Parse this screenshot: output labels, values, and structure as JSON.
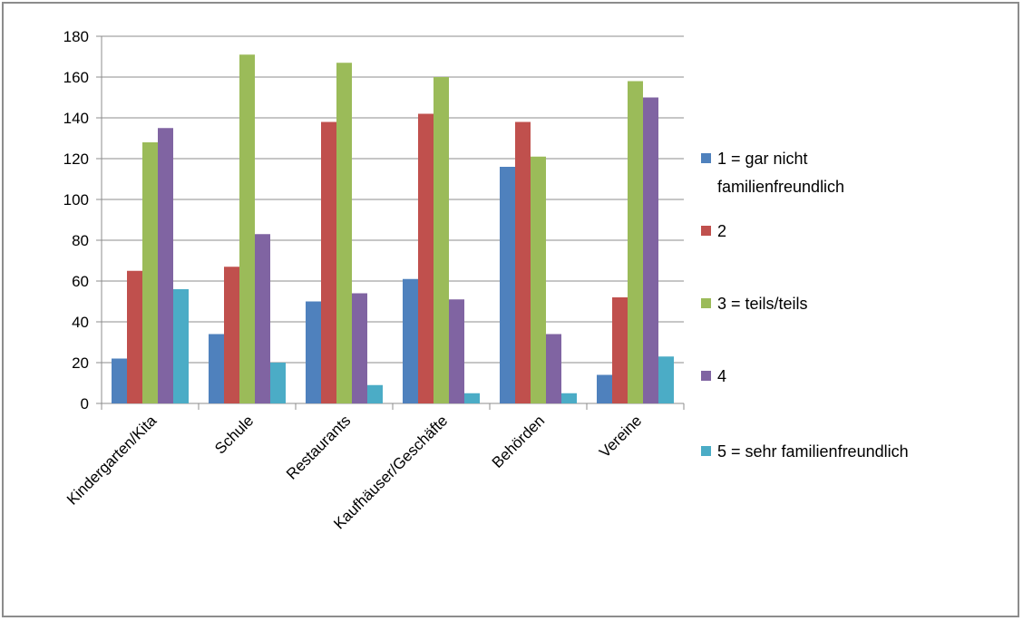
{
  "chart_data": {
    "type": "bar",
    "title": "",
    "xlabel": "",
    "ylabel": "",
    "ylim": [
      0,
      180
    ],
    "yticks": [
      0,
      20,
      40,
      60,
      80,
      100,
      120,
      140,
      160,
      180
    ],
    "grid": true,
    "legend_position": "right",
    "categories": [
      "Kindergarten/Kita",
      "Schule",
      "Restaurants",
      "Kaufhäuser/Geschäfte",
      "Behörden",
      "Vereine"
    ],
    "series": [
      {
        "name": "1 = gar nicht familienfreundlich",
        "legend_lines": [
          "1 = gar nicht",
          "familienfreundlich"
        ],
        "color": "#4f81bd",
        "values": [
          22,
          34,
          50,
          61,
          116,
          14
        ]
      },
      {
        "name": "2",
        "legend_lines": [
          "2"
        ],
        "color": "#c0504d",
        "values": [
          65,
          67,
          138,
          142,
          138,
          52
        ]
      },
      {
        "name": "3 = teils/teils",
        "legend_lines": [
          "3 = teils/teils"
        ],
        "color": "#9bbb59",
        "values": [
          128,
          171,
          167,
          160,
          121,
          158
        ]
      },
      {
        "name": "4",
        "legend_lines": [
          "4"
        ],
        "color": "#8064a2",
        "values": [
          135,
          83,
          54,
          51,
          34,
          150
        ]
      },
      {
        "name": "5 = sehr  familienfreundlich",
        "legend_lines": [
          "5 = sehr  familienfreundlich"
        ],
        "color": "#4bacc6",
        "values": [
          56,
          20,
          9,
          5,
          5,
          23
        ]
      }
    ]
  }
}
